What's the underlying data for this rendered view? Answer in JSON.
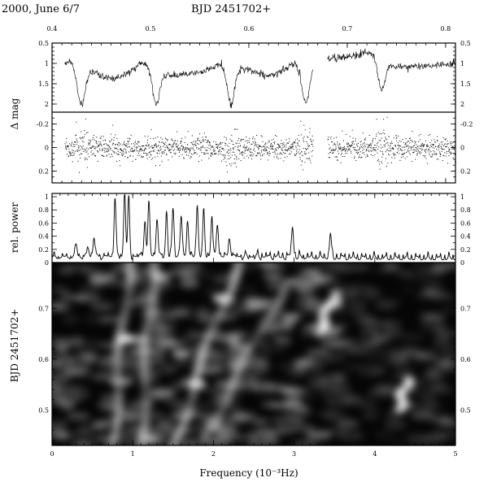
{
  "header": {
    "date": "2000, June 6/7",
    "top_axis_label": "BJD 2451702+"
  },
  "chart_data": [
    {
      "type": "line",
      "panel": "light-curve",
      "ylabel": "Δ mag",
      "x_range": [
        0.4,
        0.81
      ],
      "ylim": [
        0.5,
        2.2
      ],
      "y_inverted": true,
      "x_ticks": [
        "0.4",
        "0.5",
        "0.6",
        "0.7",
        "0.8"
      ],
      "y_ticks": [
        "0.5",
        "1",
        "1.5",
        "2"
      ],
      "segments": [
        [
          0.413,
          0.665
        ],
        [
          0.68,
          0.81
        ]
      ],
      "baseline": [
        {
          "x": 0.413,
          "y": 1.1
        },
        {
          "x": 0.44,
          "y": 1.2
        },
        {
          "x": 0.46,
          "y": 1.4
        },
        {
          "x": 0.49,
          "y": 1.1
        },
        {
          "x": 0.52,
          "y": 1.3
        },
        {
          "x": 0.56,
          "y": 1.2
        },
        {
          "x": 0.59,
          "y": 1.1
        },
        {
          "x": 0.62,
          "y": 1.3
        },
        {
          "x": 0.665,
          "y": 1.05
        },
        {
          "x": 0.68,
          "y": 0.9
        },
        {
          "x": 0.71,
          "y": 0.8
        },
        {
          "x": 0.73,
          "y": 0.9
        },
        {
          "x": 0.75,
          "y": 1.1
        },
        {
          "x": 0.78,
          "y": 1.05
        },
        {
          "x": 0.81,
          "y": 1.0
        }
      ],
      "eclipses": [
        {
          "x": 0.43,
          "depth": 0.9
        },
        {
          "x": 0.506,
          "depth": 0.8
        },
        {
          "x": 0.582,
          "depth": 0.9
        },
        {
          "x": 0.658,
          "depth": 0.9
        },
        {
          "x": 0.735,
          "depth": 0.7
        }
      ]
    },
    {
      "type": "scatter",
      "panel": "residuals",
      "ylim": [
        -0.3,
        0.3
      ],
      "y_inverted": true,
      "y_ticks": [
        "-0.2",
        "0",
        "0.2"
      ],
      "scatter_sigma": 0.08
    },
    {
      "type": "line",
      "panel": "power-spectrum",
      "ylabel": "rel. power",
      "xlim": [
        0,
        5
      ],
      "ylim": [
        0,
        1.05
      ],
      "y_ticks": [
        "0",
        "0.2",
        "0.4",
        "0.6",
        "0.8",
        "1"
      ],
      "peaks": [
        {
          "f": 0.3,
          "p": 0.2
        },
        {
          "f": 0.45,
          "p": 0.15
        },
        {
          "f": 0.52,
          "p": 0.3
        },
        {
          "f": 0.78,
          "p": 0.9
        },
        {
          "f": 0.9,
          "p": 1.0
        },
        {
          "f": 0.95,
          "p": 0.85
        },
        {
          "f": 1.15,
          "p": 0.55
        },
        {
          "f": 1.2,
          "p": 0.82
        },
        {
          "f": 1.3,
          "p": 0.6
        },
        {
          "f": 1.42,
          "p": 0.65
        },
        {
          "f": 1.5,
          "p": 0.72
        },
        {
          "f": 1.6,
          "p": 0.62
        },
        {
          "f": 1.68,
          "p": 0.55
        },
        {
          "f": 1.8,
          "p": 0.78
        },
        {
          "f": 1.88,
          "p": 0.65
        },
        {
          "f": 1.98,
          "p": 0.6
        },
        {
          "f": 2.05,
          "p": 0.52
        },
        {
          "f": 2.2,
          "p": 0.3
        },
        {
          "f": 2.98,
          "p": 0.48
        },
        {
          "f": 3.45,
          "p": 0.35
        }
      ]
    },
    {
      "type": "heatmap",
      "panel": "dynamic-spectrum",
      "xlabel": "Frequency (10⁻³Hz)",
      "ylabel": "BJD 2451702+",
      "xlim": [
        0,
        5
      ],
      "ylim": [
        0.43,
        0.79
      ],
      "x_ticks": [
        "0",
        "1",
        "2",
        "3",
        "4",
        "5"
      ],
      "y_ticks": [
        "0.5",
        "0.6",
        "0.7"
      ],
      "ridges": [
        {
          "f0": 0.75,
          "t0": 0.43,
          "f1": 0.95,
          "t1": 0.79,
          "amp": 0.55
        },
        {
          "f0": 1.1,
          "t0": 0.43,
          "f1": 1.25,
          "t1": 0.79,
          "amp": 0.5
        },
        {
          "f0": 1.5,
          "t0": 0.43,
          "f1": 2.3,
          "t1": 0.79,
          "amp": 0.65
        },
        {
          "f0": 1.9,
          "t0": 0.45,
          "f1": 2.9,
          "t1": 0.75,
          "amp": 0.4
        },
        {
          "f0": 3.3,
          "t0": 0.65,
          "f1": 3.5,
          "t1": 0.73,
          "amp": 0.45
        },
        {
          "f0": 4.3,
          "t0": 0.5,
          "f1": 4.4,
          "t1": 0.56,
          "amp": 0.4
        }
      ],
      "blobs": [
        {
          "f": 0.9,
          "t": 0.64,
          "amp": 0.8
        },
        {
          "f": 1.35,
          "t": 0.76,
          "amp": 0.55
        },
        {
          "f": 1.8,
          "t": 0.55,
          "amp": 0.6
        },
        {
          "f": 2.1,
          "t": 0.72,
          "amp": 0.65
        },
        {
          "f": 2.95,
          "t": 0.68,
          "amp": 0.4
        },
        {
          "f": 3.5,
          "t": 0.71,
          "amp": 0.55
        },
        {
          "f": 1.6,
          "t": 0.61,
          "amp": 0.55
        },
        {
          "f": 0.6,
          "t": 0.47,
          "amp": 0.35
        }
      ]
    }
  ]
}
